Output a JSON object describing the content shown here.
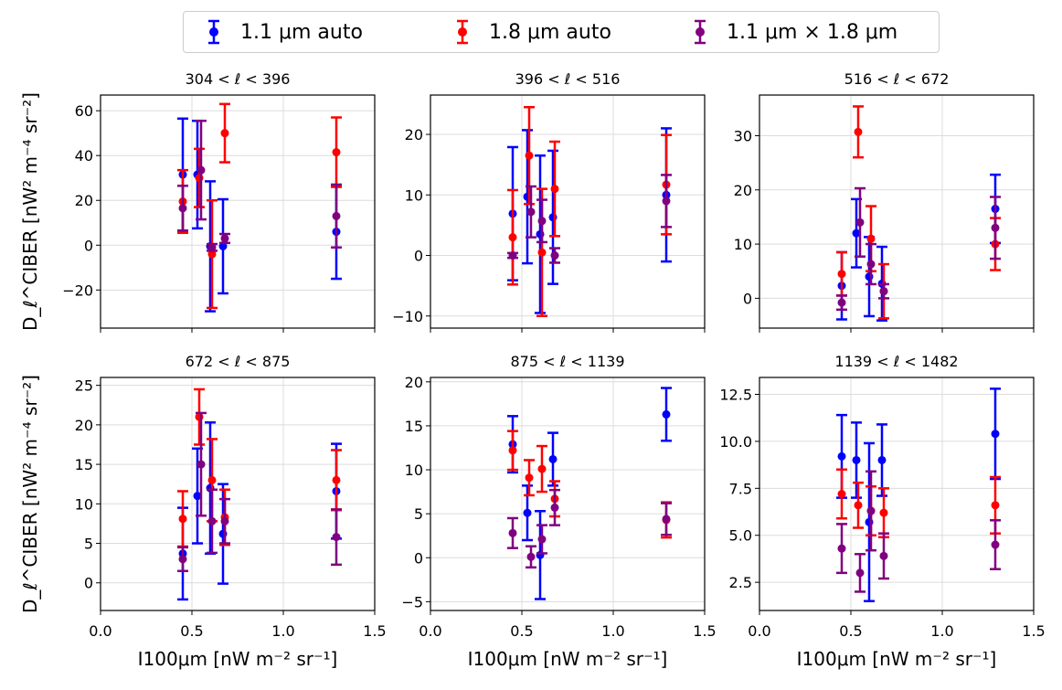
{
  "legend": [
    {
      "label": "1.1 μm auto",
      "color": "#0000ff"
    },
    {
      "label": "1.8 μm auto",
      "color": "#ff0000"
    },
    {
      "label": "1.1 μm × 1.8 μm",
      "color": "#800080"
    }
  ],
  "shared_xlabel": "I100μm [nW m⁻² sr⁻¹]",
  "shared_ylabel": "D_ℓ^CIBER [nW² m⁻⁴ sr⁻²]",
  "chart_data": [
    {
      "type": "scatter",
      "title": "304 < ℓ < 396",
      "xlim": [
        0.0,
        1.5
      ],
      "ylim": [
        -37,
        67
      ],
      "xticks": [
        0.0,
        0.5,
        1.0,
        1.5
      ],
      "xtick_labels": [
        "0.0",
        "0.5",
        "1.0",
        "1.5"
      ],
      "yticks": [
        -20,
        0,
        20,
        40,
        60
      ],
      "ytick_labels": [
        "−20",
        "0",
        "20",
        "40",
        "60"
      ],
      "grid": true,
      "series": [
        {
          "name": "1.1 μm auto",
          "color": "#0000ff",
          "x": [
            0.45,
            0.53,
            0.6,
            0.67,
            1.29
          ],
          "y": [
            31.5,
            31.5,
            -0.5,
            -0.5,
            6.0
          ],
          "yerr": [
            25,
            24,
            29,
            21,
            21
          ]
        },
        {
          "name": "1.8 μm auto",
          "color": "#ff0000",
          "x": [
            0.45,
            0.54,
            0.61,
            0.68,
            1.29
          ],
          "y": [
            19.5,
            30.0,
            -4.0,
            50.0,
            41.5
          ],
          "yerr": [
            14,
            13,
            24,
            13,
            15.5
          ]
        },
        {
          "name": "1.1 μm × 1.8 μm",
          "color": "#800080",
          "x": [
            0.45,
            0.55,
            0.61,
            0.68,
            1.29
          ],
          "y": [
            16.5,
            33.5,
            -1.0,
            3.0,
            13.0
          ],
          "yerr": [
            10,
            22,
            1.5,
            2.0,
            14
          ]
        }
      ]
    },
    {
      "type": "scatter",
      "title": "396 < ℓ < 516",
      "xlim": [
        0.0,
        1.5
      ],
      "ylim": [
        -12,
        26.5
      ],
      "xticks": [
        0.0,
        0.5,
        1.0,
        1.5
      ],
      "xtick_labels": [
        "0.0",
        "0.5",
        "1.0",
        "1.5"
      ],
      "yticks": [
        -10,
        0,
        10,
        20
      ],
      "ytick_labels": [
        "−10",
        "0",
        "10",
        "20"
      ],
      "grid": true,
      "series": [
        {
          "name": "1.1 μm auto",
          "color": "#0000ff",
          "x": [
            0.45,
            0.53,
            0.6,
            0.67,
            1.29
          ],
          "y": [
            6.9,
            9.7,
            3.5,
            6.3,
            10.0
          ],
          "yerr": [
            11,
            11,
            13,
            11,
            11
          ]
        },
        {
          "name": "1.8 μm auto",
          "color": "#ff0000",
          "x": [
            0.45,
            0.54,
            0.61,
            0.68,
            1.29
          ],
          "y": [
            3.0,
            16.5,
            0.5,
            11.0,
            11.7
          ],
          "yerr": [
            7.8,
            8,
            10.5,
            7.8,
            8.2
          ]
        },
        {
          "name": "1.1 μm × 1.8 μm",
          "color": "#800080",
          "x": [
            0.45,
            0.55,
            0.61,
            0.68,
            1.29
          ],
          "y": [
            0.0,
            7.2,
            5.7,
            0.0,
            9.0
          ],
          "yerr": [
            0.4,
            4.2,
            3.5,
            1.2,
            4.3
          ]
        }
      ]
    },
    {
      "type": "scatter",
      "title": "516 < ℓ < 672",
      "xlim": [
        0.0,
        1.5
      ],
      "ylim": [
        -5.5,
        37.5
      ],
      "xticks": [
        0.0,
        0.5,
        1.0,
        1.5
      ],
      "xtick_labels": [
        "0.0",
        "0.5",
        "1.0",
        "1.5"
      ],
      "yticks": [
        0,
        10,
        20,
        30
      ],
      "ytick_labels": [
        "0",
        "10",
        "20",
        "30"
      ],
      "grid": true,
      "series": [
        {
          "name": "1.1 μm auto",
          "color": "#0000ff",
          "x": [
            0.45,
            0.53,
            0.6,
            0.67,
            1.29
          ],
          "y": [
            2.3,
            12.0,
            4.0,
            2.7,
            16.5
          ],
          "yerr": [
            6.2,
            6.3,
            7.3,
            6.8,
            6.3
          ]
        },
        {
          "name": "1.8 μm auto",
          "color": "#ff0000",
          "x": [
            0.45,
            0.54,
            0.61,
            0.68,
            1.29
          ],
          "y": [
            4.5,
            30.7,
            11.0,
            1.3,
            10.0
          ],
          "yerr": [
            4,
            4.7,
            6,
            5,
            4.8
          ]
        },
        {
          "name": "1.1 μm × 1.8 μm",
          "color": "#800080",
          "x": [
            0.45,
            0.55,
            0.61,
            0.68,
            1.29
          ],
          "y": [
            -0.8,
            14.0,
            6.3,
            1.3,
            13.0
          ],
          "yerr": [
            1.3,
            6.3,
            3.7,
            1.3,
            5.7
          ]
        }
      ]
    },
    {
      "type": "scatter",
      "title": "672 < ℓ < 875",
      "xlim": [
        0.0,
        1.5
      ],
      "ylim": [
        -3.5,
        26
      ],
      "xticks": [
        0.0,
        0.5,
        1.0,
        1.5
      ],
      "xtick_labels": [
        "0.0",
        "0.5",
        "1.0",
        "1.5"
      ],
      "yticks": [
        0,
        5,
        10,
        15,
        20,
        25
      ],
      "ytick_labels": [
        "0",
        "5",
        "10",
        "15",
        "20",
        "25"
      ],
      "grid": true,
      "series": [
        {
          "name": "1.1 μm auto",
          "color": "#0000ff",
          "x": [
            0.45,
            0.53,
            0.6,
            0.67,
            1.29
          ],
          "y": [
            3.7,
            11.0,
            12.0,
            6.2,
            11.6
          ],
          "yerr": [
            5.8,
            6,
            8.3,
            6.3,
            6
          ]
        },
        {
          "name": "1.8 μm auto",
          "color": "#ff0000",
          "x": [
            0.45,
            0.54,
            0.61,
            0.68,
            1.29
          ],
          "y": [
            8.1,
            21.0,
            13.0,
            8.3,
            13.0
          ],
          "yerr": [
            3.5,
            3.5,
            5.2,
            3.5,
            3.8
          ]
        },
        {
          "name": "1.1 μm × 1.8 μm",
          "color": "#800080",
          "x": [
            0.45,
            0.55,
            0.61,
            0.68,
            1.29
          ],
          "y": [
            3.0,
            15.0,
            7.8,
            7.8,
            5.8
          ],
          "yerr": [
            1.5,
            6.5,
            4,
            2.8,
            3.5
          ]
        }
      ]
    },
    {
      "type": "scatter",
      "title": "875 < ℓ < 1139",
      "xlim": [
        0.0,
        1.5
      ],
      "ylim": [
        -6,
        20.5
      ],
      "xticks": [
        0.0,
        0.5,
        1.0,
        1.5
      ],
      "xtick_labels": [
        "0.0",
        "0.5",
        "1.0",
        "1.5"
      ],
      "yticks": [
        -5,
        0,
        5,
        10,
        15,
        20
      ],
      "ytick_labels": [
        "−5",
        "0",
        "5",
        "10",
        "15",
        "20"
      ],
      "grid": true,
      "series": [
        {
          "name": "1.1 μm auto",
          "color": "#0000ff",
          "x": [
            0.45,
            0.53,
            0.6,
            0.67,
            1.29
          ],
          "y": [
            12.9,
            5.1,
            0.3,
            11.2,
            16.3
          ],
          "yerr": [
            3.2,
            3.1,
            5,
            3,
            3
          ]
        },
        {
          "name": "1.8 μm auto",
          "color": "#ff0000",
          "x": [
            0.45,
            0.54,
            0.61,
            0.68,
            1.29
          ],
          "y": [
            12.2,
            9.1,
            10.1,
            6.7,
            4.3
          ],
          "yerr": [
            2.2,
            2,
            2.6,
            2,
            2
          ]
        },
        {
          "name": "1.1 μm × 1.8 μm",
          "color": "#800080",
          "x": [
            0.45,
            0.55,
            0.61,
            0.68,
            1.29
          ],
          "y": [
            2.8,
            0.1,
            2.1,
            5.7,
            4.4
          ],
          "yerr": [
            1.7,
            1.2,
            1.6,
            2,
            1.8
          ]
        }
      ]
    },
    {
      "type": "scatter",
      "title": "1139 < ℓ < 1482",
      "xlim": [
        0.0,
        1.5
      ],
      "ylim": [
        1,
        13.4
      ],
      "xticks": [
        0.0,
        0.5,
        1.0,
        1.5
      ],
      "xtick_labels": [
        "0.0",
        "0.5",
        "1.0",
        "1.5"
      ],
      "yticks": [
        2.5,
        5.0,
        7.5,
        10.0,
        12.5
      ],
      "ytick_labels": [
        "2.5",
        "5.0",
        "7.5",
        "10.0",
        "12.5"
      ],
      "grid": true,
      "series": [
        {
          "name": "1.1 μm auto",
          "color": "#0000ff",
          "x": [
            0.45,
            0.53,
            0.6,
            0.67,
            1.29
          ],
          "y": [
            9.2,
            9.0,
            5.7,
            9.0,
            10.4
          ],
          "yerr": [
            2.2,
            2,
            4.2,
            1.9,
            2.4
          ]
        },
        {
          "name": "1.8 μm auto",
          "color": "#ff0000",
          "x": [
            0.45,
            0.54,
            0.61,
            0.68,
            1.29
          ],
          "y": [
            7.2,
            6.6,
            6.3,
            6.2,
            6.6
          ],
          "yerr": [
            1.3,
            1.2,
            1.3,
            1.3,
            1.5
          ]
        },
        {
          "name": "1.1 μm × 1.8 μm",
          "color": "#800080",
          "x": [
            0.45,
            0.55,
            0.61,
            0.68,
            1.29
          ],
          "y": [
            4.3,
            3.0,
            6.3,
            3.9,
            4.5
          ],
          "yerr": [
            1.3,
            1.0,
            2.1,
            1.2,
            1.3
          ]
        }
      ]
    }
  ]
}
